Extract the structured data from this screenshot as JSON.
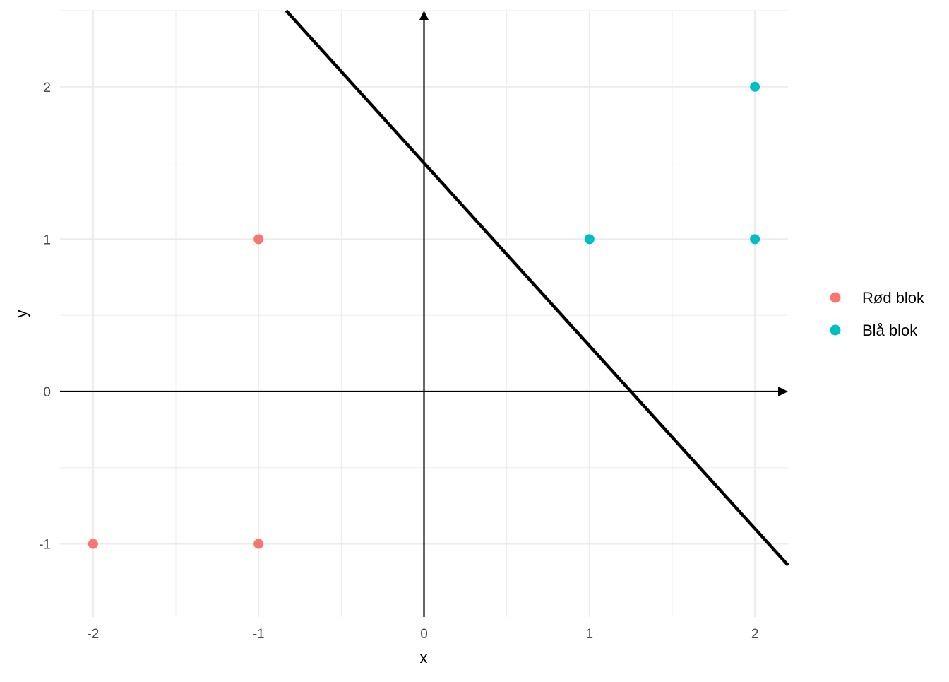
{
  "chart_data": {
    "type": "scatter",
    "title": "",
    "xlabel": "x",
    "ylabel": "y",
    "xlim": [
      -2.2,
      2.2
    ],
    "ylim": [
      -1.48,
      2.5
    ],
    "x_ticks": [
      -2,
      -1,
      0,
      1,
      2
    ],
    "y_ticks": [
      -1,
      0,
      1,
      2
    ],
    "x_tick_labels": [
      "-2",
      "-1",
      "0",
      "1",
      "2"
    ],
    "y_tick_labels": [
      "-1",
      "0",
      "1",
      "2"
    ],
    "grid": true,
    "legend_position": "right",
    "series": [
      {
        "name": "Rød blok",
        "color": "#F8766D",
        "points": [
          [
            -2,
            -1
          ],
          [
            -1,
            -1
          ],
          [
            -1,
            1
          ]
        ]
      },
      {
        "name": "Blå blok",
        "color": "#00BFC4",
        "points": [
          [
            1,
            1
          ],
          [
            2,
            1
          ],
          [
            2,
            2
          ]
        ]
      }
    ],
    "line": {
      "intercept": 1.5,
      "slope": -1.2,
      "color": "#000000"
    },
    "axes_arrows": true
  }
}
